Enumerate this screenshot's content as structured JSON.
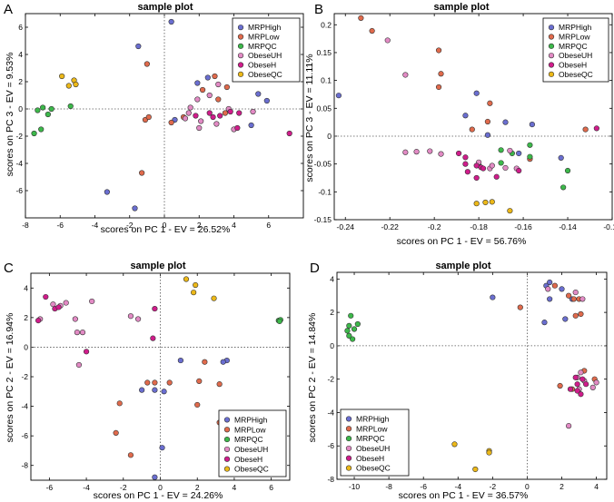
{
  "figure_caption": "",
  "panel_letters": [
    "A",
    "B",
    "C",
    "D"
  ],
  "legend_entries": [
    {
      "name": "MRPHigh",
      "color": "#6a6ed0"
    },
    {
      "name": "MRPLow",
      "color": "#e06a4c"
    },
    {
      "name": "MRPQC",
      "color": "#3cb84a"
    },
    {
      "name": "ObeseUH",
      "color": "#e28ac4"
    },
    {
      "name": "ObeseH",
      "color": "#d01c8b"
    },
    {
      "name": "ObeseQC",
      "color": "#ecb818"
    }
  ],
  "chart_data": [
    {
      "panel": "A",
      "type": "scatter",
      "title": "sample plot",
      "xlabel": "scores on PC 1 - EV = 26.52%",
      "ylabel": "scores on PC 3 - EV = 9.53%",
      "xlim": [
        -8,
        8
      ],
      "ylim": [
        -8,
        7
      ],
      "xticks": [
        -8,
        -6,
        -4,
        -2,
        0,
        2,
        4,
        6
      ],
      "xtick_labels": [
        "-8",
        "-6",
        "-4",
        "-2",
        "0",
        "2",
        "4",
        "6"
      ],
      "yticks": [
        -6,
        -4,
        -2,
        0,
        2,
        4,
        6
      ],
      "ytick_labels": [
        "-6",
        "-4",
        "-2",
        "0",
        "2",
        "4",
        "6"
      ],
      "legend_position": "top-right",
      "series": [
        {
          "name": "MRPHigh",
          "points": [
            [
              0.4,
              6.4
            ],
            [
              -1.5,
              4.6
            ],
            [
              -3.3,
              -6.1
            ],
            [
              -1.7,
              -7.3
            ],
            [
              2.5,
              2.3
            ],
            [
              1.9,
              1.9
            ],
            [
              5.4,
              1.1
            ],
            [
              5.9,
              0.6
            ],
            [
              5.0,
              -1.2
            ],
            [
              0.6,
              -0.8
            ]
          ]
        },
        {
          "name": "MRPLow",
          "points": [
            [
              -1.0,
              3.3
            ],
            [
              2.9,
              2.4
            ],
            [
              3.6,
              1.6
            ],
            [
              2.2,
              1.4
            ],
            [
              -1.1,
              -0.8
            ],
            [
              -0.9,
              -0.6
            ],
            [
              0.4,
              -1.0
            ],
            [
              1.1,
              -0.6
            ],
            [
              -1.3,
              -4.7
            ],
            [
              3.1,
              0.7
            ],
            [
              3.5,
              -0.3
            ]
          ]
        },
        {
          "name": "MRPQC",
          "points": [
            [
              -7.3,
              -0.1
            ],
            [
              -7.0,
              0.1
            ],
            [
              -7.1,
              -1.5
            ],
            [
              -7.5,
              -1.8
            ],
            [
              -6.5,
              0.0
            ],
            [
              -6.7,
              -0.4
            ],
            [
              -5.4,
              0.2
            ]
          ]
        },
        {
          "name": "ObeseUH",
          "points": [
            [
              3.1,
              1.8
            ],
            [
              2.6,
              1.0
            ],
            [
              1.9,
              0.7
            ],
            [
              1.5,
              0.1
            ],
            [
              1.2,
              -0.7
            ],
            [
              2.0,
              -1.4
            ],
            [
              3.0,
              -1.1
            ],
            [
              2.1,
              -0.9
            ],
            [
              4.0,
              -1.5
            ],
            [
              5.1,
              -0.2
            ],
            [
              3.7,
              0.0
            ],
            [
              1.4,
              -0.3
            ]
          ]
        },
        {
          "name": "ObeseH",
          "points": [
            [
              3.8,
              -0.2
            ],
            [
              4.3,
              -0.3
            ],
            [
              2.8,
              -0.6
            ],
            [
              4.2,
              -1.4
            ],
            [
              7.2,
              -1.8
            ],
            [
              2.6,
              -0.3
            ],
            [
              3.2,
              -0.5
            ],
            [
              1.8,
              -0.5
            ]
          ]
        },
        {
          "name": "ObeseQC",
          "points": [
            [
              -5.9,
              2.4
            ],
            [
              -5.2,
              2.1
            ],
            [
              -5.1,
              1.8
            ],
            [
              -5.5,
              1.7
            ]
          ]
        }
      ]
    },
    {
      "panel": "B",
      "type": "scatter",
      "title": "sample plot",
      "xlabel": "scores on PC 1 - EV = 56.76%",
      "ylabel": "scores on PC 3 - EV = 11.11%",
      "xlim": [
        -0.245,
        -0.12
      ],
      "ylim": [
        -0.15,
        0.22
      ],
      "xticks": [
        -0.24,
        -0.22,
        -0.2,
        -0.18,
        -0.16,
        -0.14,
        -0.12
      ],
      "xtick_labels": [
        "-0.24",
        "-0.22",
        "-0.2",
        "-0.18",
        "-0.16",
        "-0.14",
        "-0.12"
      ],
      "yticks": [
        -0.15,
        -0.1,
        -0.05,
        0,
        0.05,
        0.1,
        0.15,
        0.2
      ],
      "ytick_labels": [
        "-0.15",
        "-0.1",
        "-0.05",
        "0",
        "0.05",
        "0.1",
        "0.15",
        "0.2"
      ],
      "legend_position": "top-right",
      "series": [
        {
          "name": "MRPHigh",
          "points": [
            [
              -0.243,
              0.073
            ],
            [
              -0.181,
              0.077
            ],
            [
              -0.186,
              0.037
            ],
            [
              -0.156,
              0.021
            ],
            [
              -0.176,
              0.002
            ],
            [
              -0.168,
              0.025
            ],
            [
              -0.143,
              -0.039
            ],
            [
              -0.162,
              -0.031
            ]
          ]
        },
        {
          "name": "MRPLow",
          "points": [
            [
              -0.233,
              0.212
            ],
            [
              -0.228,
              0.189
            ],
            [
              -0.198,
              0.154
            ],
            [
              -0.197,
              0.112
            ],
            [
              -0.198,
              0.088
            ],
            [
              -0.175,
              0.059
            ],
            [
              -0.176,
              0.026
            ],
            [
              -0.183,
              0.012
            ],
            [
              -0.132,
              0.012
            ],
            [
              -0.157,
              -0.041
            ]
          ]
        },
        {
          "name": "MRPQC",
          "points": [
            [
              -0.18,
              -0.052
            ],
            [
              -0.17,
              -0.048
            ],
            [
              -0.17,
              -0.025
            ],
            [
              -0.165,
              -0.031
            ],
            [
              -0.157,
              -0.016
            ],
            [
              -0.14,
              -0.062
            ],
            [
              -0.142,
              -0.092
            ],
            [
              -0.157,
              -0.037
            ]
          ]
        },
        {
          "name": "ObeseUH",
          "points": [
            [
              -0.221,
              0.172
            ],
            [
              -0.213,
              0.11
            ],
            [
              -0.213,
              -0.029
            ],
            [
              -0.208,
              -0.028
            ],
            [
              -0.202,
              -0.027
            ],
            [
              -0.197,
              -0.032
            ],
            [
              -0.18,
              -0.047
            ],
            [
              -0.175,
              -0.058
            ],
            [
              -0.174,
              -0.053
            ],
            [
              -0.168,
              -0.057
            ],
            [
              -0.166,
              -0.026
            ],
            [
              -0.163,
              -0.058
            ]
          ]
        },
        {
          "name": "ObeseH",
          "points": [
            [
              -0.189,
              -0.031
            ],
            [
              -0.186,
              -0.038
            ],
            [
              -0.186,
              -0.05
            ],
            [
              -0.181,
              -0.053
            ],
            [
              -0.179,
              -0.056
            ],
            [
              -0.181,
              -0.075
            ],
            [
              -0.172,
              -0.073
            ],
            [
              -0.162,
              -0.062
            ],
            [
              -0.127,
              0.014
            ],
            [
              -0.185,
              -0.064
            ],
            [
              -0.178,
              -0.058
            ]
          ]
        },
        {
          "name": "ObeseQC",
          "points": [
            [
              -0.181,
              -0.121
            ],
            [
              -0.177,
              -0.119
            ],
            [
              -0.174,
              -0.118
            ],
            [
              -0.166,
              -0.134
            ]
          ]
        }
      ]
    },
    {
      "panel": "C",
      "type": "scatter",
      "title": "sample plot",
      "xlabel": "scores on PC 1 - EV = 24.26%",
      "ylabel": "scores on PC 2 - EV = 16.94%",
      "xlim": [
        -7,
        7
      ],
      "ylim": [
        -9,
        5
      ],
      "xticks": [
        -6,
        -4,
        -2,
        0,
        2,
        4,
        6
      ],
      "xtick_labels": [
        "-6",
        "-4",
        "-2",
        "0",
        "2",
        "4",
        "6"
      ],
      "yticks": [
        -8,
        -6,
        -4,
        -2,
        0,
        2,
        4
      ],
      "ytick_labels": [
        "-8",
        "-6",
        "-4",
        "-2",
        "0",
        "2",
        "4"
      ],
      "legend_position": "bottom-right",
      "series": [
        {
          "name": "MRPHigh",
          "points": [
            [
              3.6,
              -0.9
            ],
            [
              3.4,
              -1.0
            ],
            [
              1.1,
              -0.9
            ],
            [
              -0.3,
              -2.9
            ],
            [
              0.2,
              -3.0
            ],
            [
              -1.0,
              -2.9
            ],
            [
              0.1,
              -6.8
            ],
            [
              -0.3,
              -8.8
            ]
          ]
        },
        {
          "name": "MRPLow",
          "points": [
            [
              -0.7,
              -2.4
            ],
            [
              -0.3,
              -2.4
            ],
            [
              0.5,
              -2.4
            ],
            [
              2.4,
              -1.0
            ],
            [
              2.1,
              -2.3
            ],
            [
              3.2,
              -2.5
            ],
            [
              2.0,
              -3.9
            ],
            [
              -2.2,
              -3.8
            ],
            [
              -2.4,
              -5.8
            ],
            [
              -1.6,
              -7.3
            ],
            [
              3.2,
              -5.1
            ]
          ]
        },
        {
          "name": "MRPQC",
          "points": [
            [
              6.4,
              1.8
            ],
            [
              6.5,
              1.85
            ],
            [
              6.45,
              1.75
            ]
          ]
        },
        {
          "name": "ObeseUH",
          "points": [
            [
              -6.5,
              1.9
            ],
            [
              -5.8,
              2.9
            ],
            [
              -5.4,
              2.8
            ],
            [
              -5.1,
              3.0
            ],
            [
              -4.6,
              1.9
            ],
            [
              -4.5,
              1.0
            ],
            [
              -4.2,
              1.0
            ],
            [
              -4.4,
              -1.2
            ],
            [
              -3.7,
              3.1
            ],
            [
              -1.6,
              2.1
            ],
            [
              -1.2,
              1.9
            ]
          ]
        },
        {
          "name": "ObeseH",
          "points": [
            [
              -6.2,
              3.4
            ],
            [
              -5.7,
              2.6
            ],
            [
              -6.6,
              1.8
            ],
            [
              -4.0,
              -0.3
            ],
            [
              -0.3,
              2.6
            ],
            [
              -0.4,
              0.6
            ],
            [
              -5.5,
              2.7
            ]
          ]
        },
        {
          "name": "ObeseQC",
          "points": [
            [
              1.4,
              4.6
            ],
            [
              1.9,
              4.2
            ],
            [
              2.9,
              3.3
            ],
            [
              1.8,
              3.7
            ]
          ]
        }
      ]
    },
    {
      "panel": "D",
      "type": "scatter",
      "title": "sample plot",
      "xlabel": "scores on PC 1 - EV = 36.57%",
      "ylabel": "scores on PC 2 - EV = 14.84%",
      "xlim": [
        -11,
        4.6
      ],
      "ylim": [
        -8,
        4.4
      ],
      "xticks": [
        -10,
        -8,
        -6,
        -4,
        -2,
        0,
        2,
        4
      ],
      "xtick_labels": [
        "-10",
        "-8",
        "-6",
        "-4",
        "-2",
        "0",
        "2",
        "4"
      ],
      "yticks": [
        -8,
        -6,
        -4,
        -2,
        0,
        2,
        4
      ],
      "ytick_labels": [
        "-8",
        "-6",
        "-4",
        "-2",
        "0",
        "2",
        "4"
      ],
      "legend_position": "bottom-left",
      "series": [
        {
          "name": "MRPHigh",
          "points": [
            [
              1.1,
              3.6
            ],
            [
              1.3,
              3.8
            ],
            [
              2.0,
              3.4
            ],
            [
              2.6,
              2.8
            ],
            [
              -2.0,
              2.9
            ],
            [
              1.3,
              2.8
            ],
            [
              1.0,
              1.4
            ],
            [
              2.2,
              1.6
            ]
          ]
        },
        {
          "name": "MRPLow",
          "points": [
            [
              -0.4,
              2.3
            ],
            [
              1.6,
              3.6
            ],
            [
              2.4,
              3.0
            ],
            [
              2.7,
              2.8
            ],
            [
              3.0,
              2.8
            ],
            [
              2.8,
              1.8
            ],
            [
              3.1,
              1.9
            ],
            [
              3.3,
              -1.5
            ],
            [
              3.9,
              -2.0
            ],
            [
              1.9,
              -2.4
            ],
            [
              2.6,
              -2.6
            ]
          ]
        },
        {
          "name": "MRPQC",
          "points": [
            [
              -10.2,
              1.8
            ],
            [
              -10.0,
              1.0
            ],
            [
              -10.3,
              1.2
            ],
            [
              -10.4,
              0.9
            ],
            [
              -10.1,
              0.4
            ],
            [
              -9.8,
              1.3
            ],
            [
              -10.3,
              0.6
            ]
          ]
        },
        {
          "name": "ObeseUH",
          "points": [
            [
              1.2,
              3.4
            ],
            [
              2.8,
              3.2
            ],
            [
              3.2,
              2.8
            ],
            [
              2.9,
              -1.9
            ],
            [
              3.3,
              -2.1
            ],
            [
              3.0,
              -2.6
            ],
            [
              4.0,
              -2.2
            ],
            [
              3.8,
              -2.5
            ],
            [
              2.4,
              -4.8
            ],
            [
              3.1,
              -1.6
            ]
          ]
        },
        {
          "name": "ObeseH",
          "points": [
            [
              2.8,
              -1.9
            ],
            [
              3.2,
              -2.0
            ],
            [
              2.9,
              -2.3
            ],
            [
              2.5,
              -2.6
            ],
            [
              3.1,
              -2.9
            ],
            [
              2.9,
              -2.7
            ],
            [
              3.4,
              -2.3
            ]
          ]
        },
        {
          "name": "ObeseQC",
          "points": [
            [
              -4.2,
              -5.9
            ],
            [
              -2.2,
              -6.3
            ],
            [
              -2.2,
              -6.4
            ],
            [
              -3.0,
              -7.4
            ]
          ]
        }
      ]
    }
  ]
}
